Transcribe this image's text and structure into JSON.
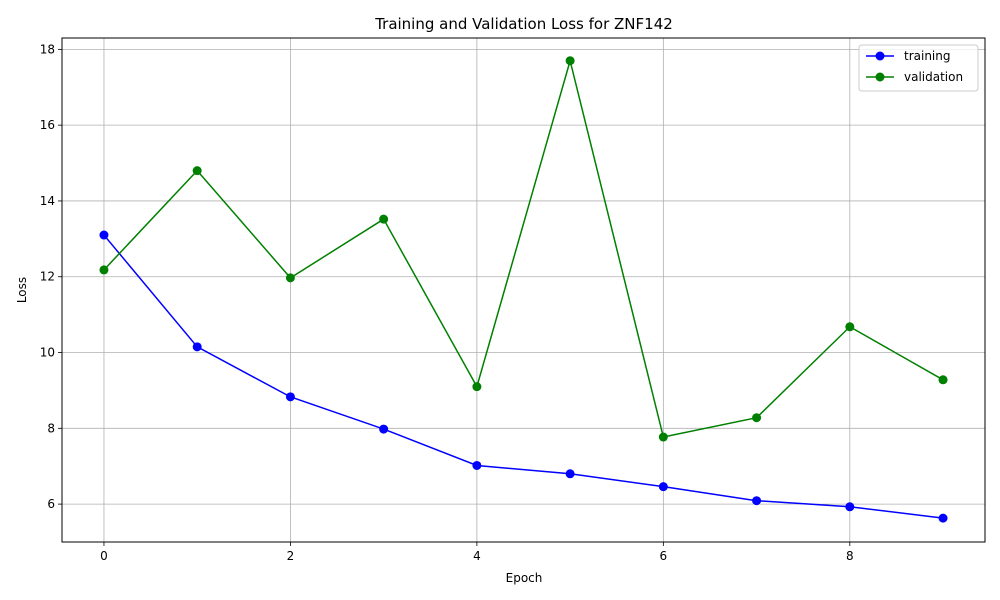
{
  "chart_data": {
    "type": "line",
    "title": "Training and Validation Loss for ZNF142",
    "xlabel": "Epoch",
    "ylabel": "Loss",
    "x": [
      0,
      1,
      2,
      3,
      4,
      5,
      6,
      7,
      8,
      9
    ],
    "x_ticks": [
      0,
      2,
      4,
      6,
      8
    ],
    "y_ticks": [
      6,
      8,
      10,
      12,
      14,
      16,
      18
    ],
    "xlim": [
      -0.45,
      9.45
    ],
    "ylim": [
      5.0,
      18.3
    ],
    "grid": true,
    "legend_position": "top-right",
    "series": [
      {
        "name": "training",
        "color": "#0000ff",
        "marker": "circle",
        "values": [
          13.1,
          10.15,
          8.83,
          7.98,
          7.02,
          6.8,
          6.46,
          6.09,
          5.93,
          5.63
        ]
      },
      {
        "name": "validation",
        "color": "#008000",
        "marker": "circle",
        "values": [
          12.18,
          14.8,
          11.97,
          13.52,
          9.1,
          17.7,
          7.77,
          8.28,
          10.68,
          9.28
        ]
      }
    ]
  }
}
